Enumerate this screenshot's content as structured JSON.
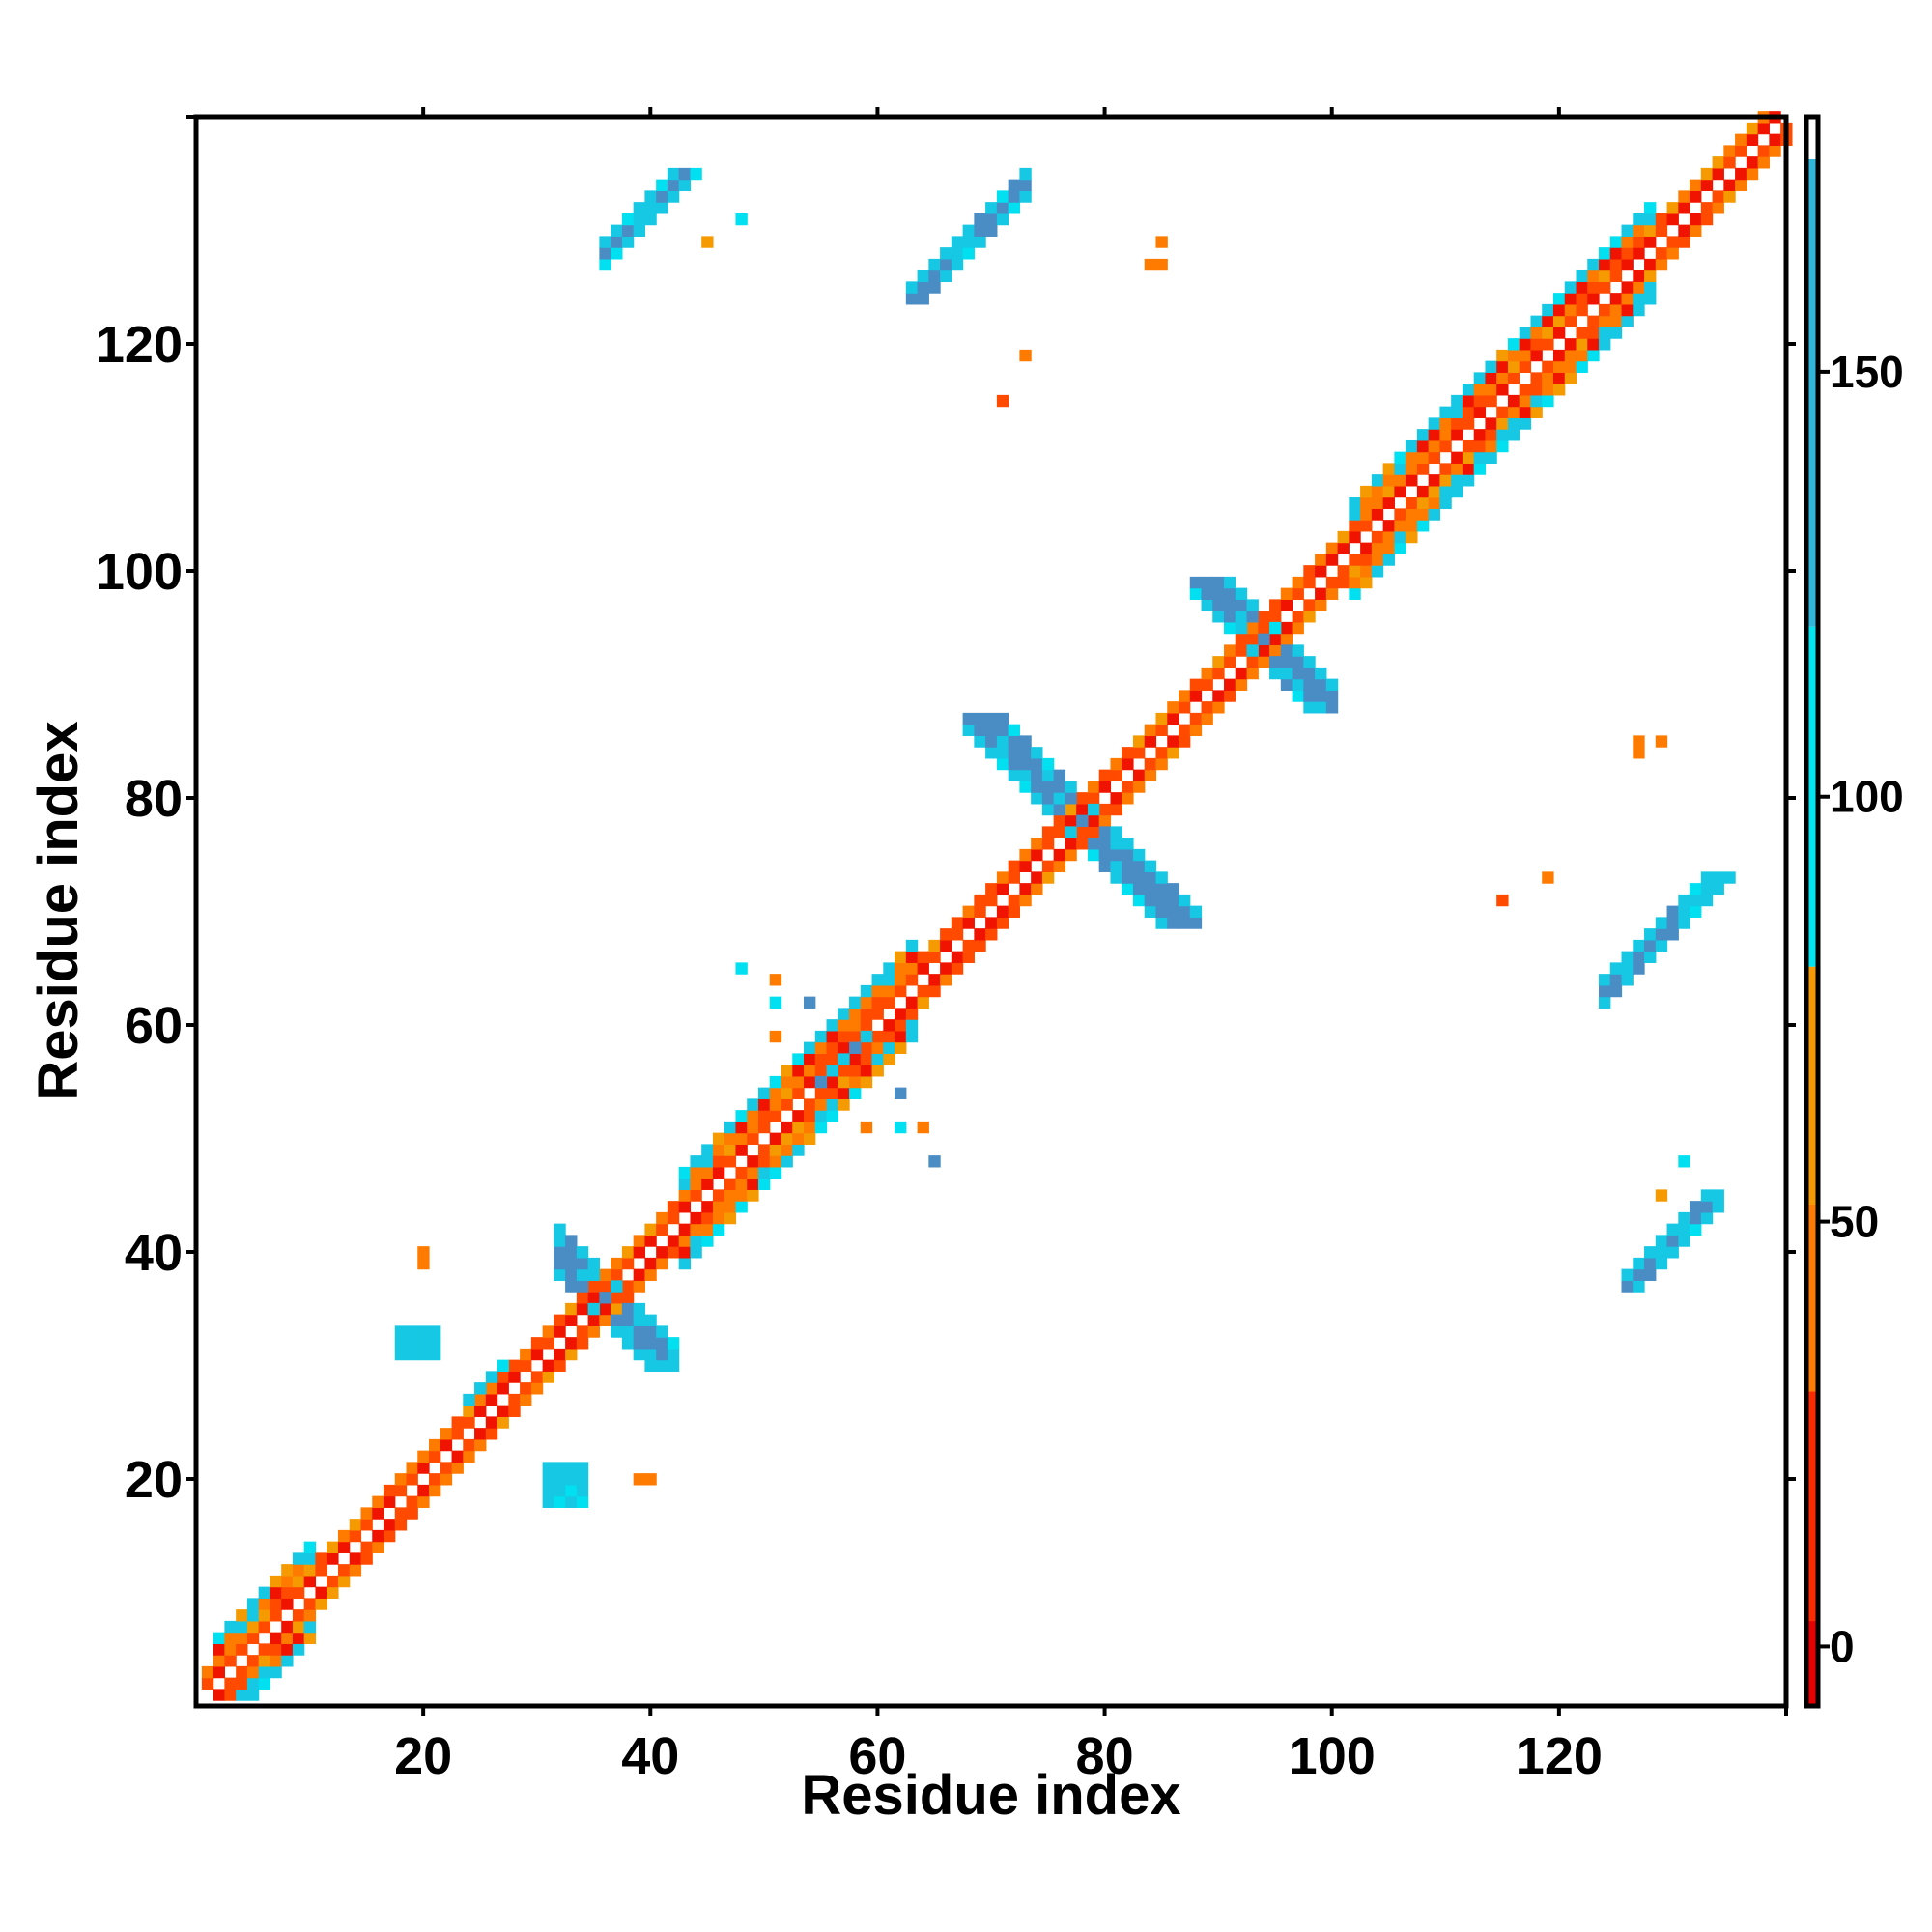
{
  "chart_data": {
    "type": "heatmap",
    "title": "",
    "xlabel": "Residue index",
    "ylabel": "Residue index",
    "xlim": [
      1,
      140
    ],
    "ylim": [
      1,
      140
    ],
    "x_ticks": [
      20,
      40,
      60,
      80,
      100,
      120
    ],
    "y_ticks": [
      20,
      40,
      60,
      80,
      100,
      120
    ],
    "colorbar": {
      "range": [
        -7,
        180
      ],
      "ticks": [
        0,
        50,
        100,
        150
      ],
      "bands": [
        {
          "from": -7,
          "to": 3,
          "color": "#e60000"
        },
        {
          "from": 3,
          "to": 30,
          "color": "#ff2a00"
        },
        {
          "from": 30,
          "to": 52,
          "color": "#ff7a00"
        },
        {
          "from": 52,
          "to": 80,
          "color": "#f59a00"
        },
        {
          "from": 80,
          "to": 120,
          "color": "#00e5ef"
        },
        {
          "from": 120,
          "to": 175,
          "color": "#2fb6d8"
        },
        {
          "from": 175,
          "to": 180,
          "color": "#ffffff"
        }
      ]
    },
    "palette": {
      "red": "#f01400",
      "orange_red": "#ff4a00",
      "orange": "#ff7b00",
      "amber": "#f59a00",
      "cyan": "#16c8e3",
      "light_cyan": "#00e0f0",
      "blue": "#4a8cc4"
    },
    "diagonal_band": {
      "half_width_small": 2,
      "half_width_wide": 4,
      "wide_segments": [
        [
          2,
          10
        ],
        [
          43,
          63
        ],
        [
          102,
          128
        ]
      ]
    },
    "contact_patches": [
      {
        "kind": "anti",
        "x": [
          32,
          42
        ],
        "y": [
          30,
          42
        ],
        "sum": 72,
        "color": "blue"
      },
      {
        "kind": "anti",
        "x": [
          68,
          88
        ],
        "y": [
          69,
          87
        ],
        "sum": 156,
        "color": "blue"
      },
      {
        "kind": "anti",
        "x": [
          88,
          100
        ],
        "y": [
          88,
          99
        ],
        "sum": 188,
        "color": "blue"
      },
      {
        "kind": "par",
        "x": [
          36,
          45
        ],
        "y": [
          127,
          135
        ],
        "offset": 92,
        "color": "blue"
      },
      {
        "kind": "par",
        "x": [
          126,
          134
        ],
        "y": [
          37,
          45
        ],
        "offset": -89,
        "color": "blue"
      },
      {
        "kind": "par",
        "x": [
          63,
          73
        ],
        "y": [
          124,
          135
        ],
        "offset": 61,
        "color": "blue"
      },
      {
        "kind": "par",
        "x": [
          124,
          135
        ],
        "y": [
          62,
          73
        ],
        "offset": -61,
        "color": "blue"
      },
      {
        "kind": "par",
        "x": [
          24,
          28
        ],
        "y": [
          25,
          30
        ],
        "offset": 2,
        "color": "blue"
      },
      {
        "kind": "par",
        "x": [
          55,
          62
        ],
        "y": [
          54,
          59
        ],
        "offset": -1,
        "color": "blue"
      },
      {
        "kind": "block",
        "x": [
          18,
          21
        ],
        "y": [
          31,
          33
        ],
        "color": "cyan"
      },
      {
        "kind": "block",
        "x": [
          31,
          34
        ],
        "y": [
          18,
          21
        ],
        "color": "cyan"
      }
    ],
    "isolated_points": [
      {
        "x": 20,
        "y": 40,
        "color": "orange"
      },
      {
        "x": 20,
        "y": 39,
        "color": "orange"
      },
      {
        "x": 39,
        "y": 20,
        "color": "orange"
      },
      {
        "x": 40,
        "y": 20,
        "color": "orange"
      },
      {
        "x": 45,
        "y": 129,
        "color": "amber"
      },
      {
        "x": 48,
        "y": 131,
        "color": "light_cyan"
      },
      {
        "x": 85,
        "y": 129,
        "color": "orange"
      },
      {
        "x": 84,
        "y": 127,
        "color": "orange"
      },
      {
        "x": 85,
        "y": 127,
        "color": "orange"
      },
      {
        "x": 73,
        "y": 119,
        "color": "orange"
      },
      {
        "x": 71,
        "y": 115,
        "color": "orange_red"
      },
      {
        "x": 48,
        "y": 65,
        "color": "light_cyan"
      },
      {
        "x": 51,
        "y": 64,
        "color": "orange"
      },
      {
        "x": 51,
        "y": 62,
        "color": "light_cyan"
      },
      {
        "x": 54,
        "y": 62,
        "color": "blue"
      },
      {
        "x": 51,
        "y": 59,
        "color": "orange"
      },
      {
        "x": 62,
        "y": 54,
        "color": "blue"
      },
      {
        "x": 59,
        "y": 51,
        "color": "orange"
      },
      {
        "x": 62,
        "y": 51,
        "color": "light_cyan"
      },
      {
        "x": 64,
        "y": 51,
        "color": "orange"
      },
      {
        "x": 65,
        "y": 48,
        "color": "blue"
      },
      {
        "x": 127,
        "y": 85,
        "color": "orange"
      },
      {
        "x": 127,
        "y": 84,
        "color": "orange"
      },
      {
        "x": 129,
        "y": 85,
        "color": "orange"
      },
      {
        "x": 115,
        "y": 71,
        "color": "orange_red"
      },
      {
        "x": 119,
        "y": 73,
        "color": "orange"
      },
      {
        "x": 129,
        "y": 45,
        "color": "amber"
      },
      {
        "x": 131,
        "y": 48,
        "color": "light_cyan"
      }
    ]
  }
}
